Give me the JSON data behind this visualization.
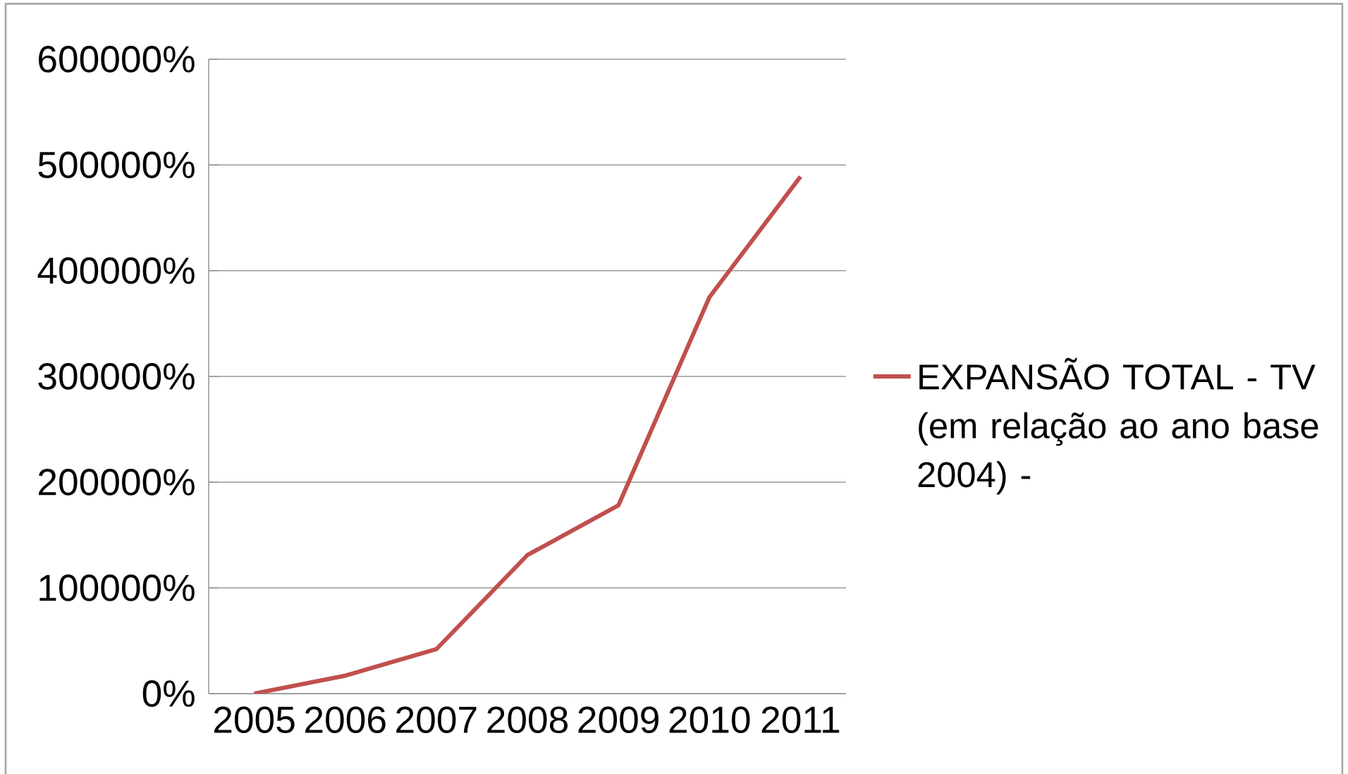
{
  "chart_data": {
    "type": "line",
    "categories": [
      "2005",
      "2006",
      "2007",
      "2008",
      "2009",
      "2010",
      "2011"
    ],
    "series": [
      {
        "name": "EXPANSÃO TOTAL - TV (em relação ao ano base 2004) -",
        "color": "#c0504d",
        "values": [
          0,
          17000,
          42000,
          131000,
          178000,
          375000,
          489000
        ]
      }
    ],
    "ylim": [
      0,
      600000
    ],
    "yticks": [
      {
        "value": 0,
        "label": "0%"
      },
      {
        "value": 100000,
        "label": "100000%"
      },
      {
        "value": 200000,
        "label": "200000%"
      },
      {
        "value": 300000,
        "label": "300000%"
      },
      {
        "value": 400000,
        "label": "400000%"
      },
      {
        "value": 500000,
        "label": "500000%"
      },
      {
        "value": 600000,
        "label": "600000%"
      }
    ],
    "grid": "y",
    "legend": "right",
    "marker": "none",
    "line_style": "solid"
  }
}
